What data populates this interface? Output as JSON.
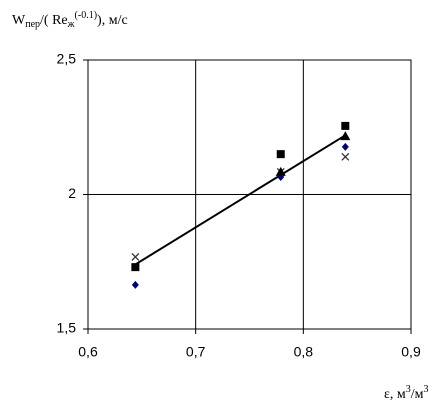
{
  "chart_data": {
    "type": "scatter",
    "y_label_parts": [
      "W",
      "пер",
      "/( Re",
      "ж",
      "(-0.1)",
      "), м/с"
    ],
    "x_label_parts": [
      "ε, м",
      "3",
      "/м",
      "3"
    ],
    "xlim": [
      0.6,
      0.9
    ],
    "xticks": [
      {
        "value": 0.6,
        "label": "0,6"
      },
      {
        "value": 0.7,
        "label": "0,7"
      },
      {
        "value": 0.8,
        "label": "0,8"
      },
      {
        "value": 0.9,
        "label": "0,9"
      }
    ],
    "ylim": [
      1.5,
      2.5
    ],
    "yticks": [
      {
        "value": 1.5,
        "label": "1,5"
      },
      2,
      {
        "value": 2.5,
        "label": "2,5"
      }
    ],
    "grid": true,
    "series": [
      {
        "marker": "square",
        "color": "#000000",
        "x": [
          0.644,
          0.779,
          0.839
        ],
        "values": [
          1.73,
          2.15,
          2.255
        ]
      },
      {
        "marker": "diamond",
        "color": "#000080",
        "x": [
          0.644,
          0.779,
          0.839
        ],
        "values": [
          1.664,
          2.065,
          2.177
        ]
      },
      {
        "marker": "cross",
        "color": "#333333",
        "x": [
          0.644,
          0.779,
          0.839
        ],
        "values": [
          1.768,
          2.084,
          2.14
        ]
      },
      {
        "marker": "triangle",
        "color": "#000000",
        "x": [
          0.779,
          0.839
        ],
        "values": [
          2.084,
          2.217
        ]
      }
    ],
    "trendline": {
      "color": "#000000",
      "x": [
        0.644,
        0.839
      ],
      "values": [
        1.74,
        2.22
      ]
    }
  }
}
